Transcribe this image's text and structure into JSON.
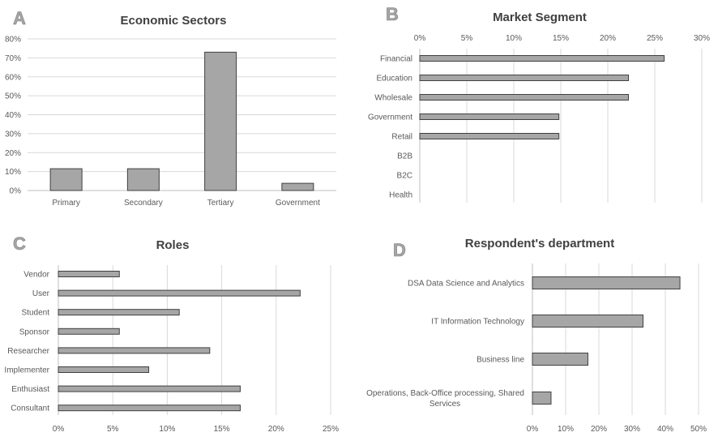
{
  "chart_data": [
    {
      "panel": "A",
      "type": "bar",
      "title": "Economic Sectors",
      "categories": [
        "Primary",
        "Secondary",
        "Tertiary",
        "Government"
      ],
      "values": [
        11.5,
        11.5,
        73,
        3.8
      ],
      "ylim": [
        0,
        80
      ],
      "ticks": [
        "0%",
        "10%",
        "20%",
        "30%",
        "40%",
        "50%",
        "60%",
        "70%",
        "80%"
      ],
      "grid": true
    },
    {
      "panel": "B",
      "type": "bar",
      "orientation": "horizontal",
      "title": "Market Segment",
      "categories": [
        "Financial",
        "Education",
        "Wholesale",
        "Government",
        "Retail",
        "B2B",
        "B2C",
        "Health"
      ],
      "values": [
        26,
        22.2,
        22.2,
        14.8,
        14.8,
        0,
        0,
        0
      ],
      "xlim": [
        0,
        30
      ],
      "ticks": [
        "0%",
        "5%",
        "10%",
        "15%",
        "20%",
        "25%",
        "30%"
      ],
      "grid": true
    },
    {
      "panel": "C",
      "type": "bar",
      "orientation": "horizontal",
      "title": "Roles",
      "categories": [
        "Vendor",
        "User",
        "Student",
        "Sponsor",
        "Researcher",
        "Implementer",
        "Enthusiast",
        "Consultant"
      ],
      "values": [
        5.6,
        22.2,
        11.1,
        5.6,
        13.9,
        8.3,
        16.7,
        16.7
      ],
      "xlim": [
        0,
        25
      ],
      "ticks": [
        "0%",
        "5%",
        "10%",
        "15%",
        "20%",
        "25%"
      ],
      "grid": true
    },
    {
      "panel": "D",
      "type": "bar",
      "orientation": "horizontal",
      "title": "Respondent's department",
      "categories": [
        [
          "DSA Data Science and Analytics"
        ],
        [
          "IT Information Technology"
        ],
        [
          "Business line"
        ],
        [
          "Operations, Back-Office processing, Shared",
          "Services"
        ]
      ],
      "values": [
        44.4,
        33.3,
        16.7,
        5.6
      ],
      "xlim": [
        0,
        50
      ],
      "ticks": [
        "0%",
        "10%",
        "20%",
        "30%",
        "40%",
        "50%"
      ],
      "grid": true
    }
  ]
}
